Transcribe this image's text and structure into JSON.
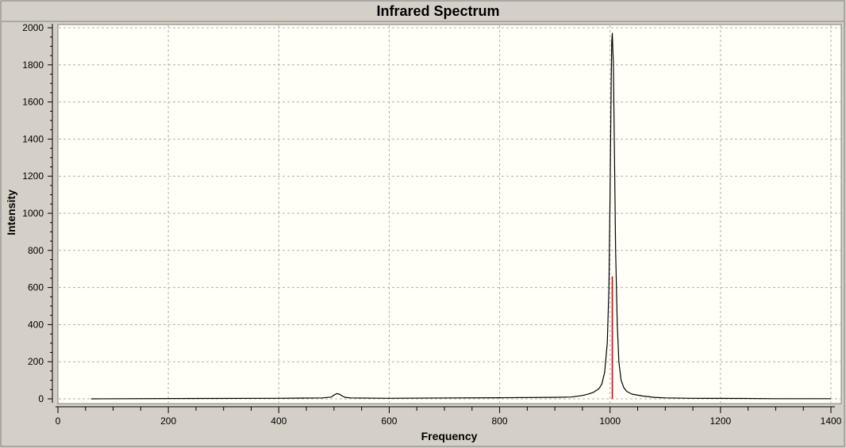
{
  "window": {
    "background_color": "#d4d0c8",
    "plot_background_color": "#fffff8"
  },
  "chart_data": {
    "type": "line",
    "title": "Infrared Spectrum",
    "xlabel": "Frequency",
    "ylabel": "Intensity",
    "xlim": [
      0,
      1400
    ],
    "ylim": [
      0,
      2000
    ],
    "x_ticks": [
      0,
      200,
      400,
      600,
      800,
      1000,
      1200,
      1400
    ],
    "y_ticks": [
      0,
      200,
      400,
      600,
      800,
      1000,
      1200,
      1400,
      1600,
      1800,
      2000
    ],
    "grid": true,
    "legend": "none",
    "series": [
      {
        "color": "#000000",
        "x": [
          60,
          275,
          400,
          480,
          495,
          500,
          505,
          510,
          515,
          520,
          530,
          600,
          720,
          800,
          900,
          930,
          950,
          960,
          970,
          980,
          985,
          990,
          995,
          998,
          1000,
          1002,
          1003,
          1004,
          1006,
          1008,
          1010,
          1013,
          1016,
          1020,
          1025,
          1030,
          1040,
          1060,
          1080,
          1100,
          1150,
          1240,
          1300,
          1400
        ],
        "y": [
          0,
          2,
          3,
          5,
          10,
          20,
          28,
          25,
          15,
          8,
          5,
          3,
          5,
          6,
          8,
          10,
          18,
          25,
          35,
          55,
          80,
          140,
          300,
          600,
          1100,
          1700,
          1920,
          1970,
          1800,
          1300,
          800,
          400,
          200,
          100,
          60,
          40,
          25,
          15,
          8,
          5,
          3,
          2,
          1,
          1
        ]
      },
      {
        "color": "#cc0000",
        "type": "stick",
        "x": [
          1004
        ],
        "y": [
          660
        ]
      }
    ]
  }
}
